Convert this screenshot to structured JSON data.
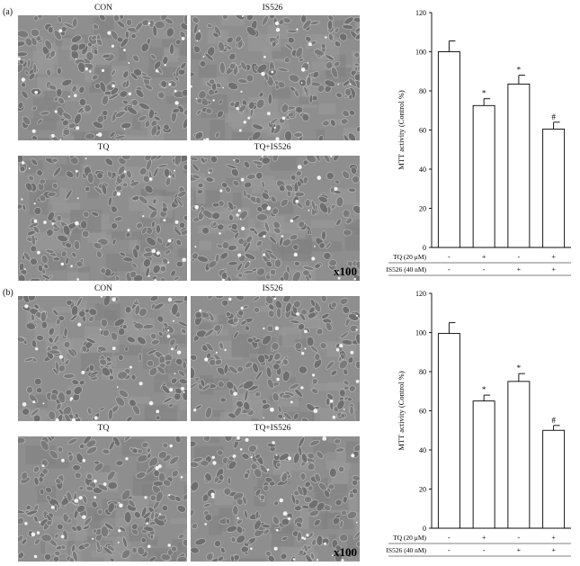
{
  "panels": [
    {
      "label": "(a)",
      "images": [
        "CON",
        "IS526",
        "TQ",
        "TQ+IS526"
      ],
      "magnification": "x100"
    },
    {
      "label": "(b)",
      "images": [
        "CON",
        "IS526",
        "TQ",
        "TQ+IS526"
      ],
      "magnification": "x100"
    }
  ],
  "chart_data": [
    {
      "type": "bar",
      "panel": "(a)",
      "ylabel": "MTT activity (Control %)",
      "ylim": [
        0,
        120
      ],
      "yticks": [
        "0",
        "20",
        "40",
        "60",
        "80",
        "100",
        "120"
      ],
      "values": [
        100,
        72.5,
        83.5,
        60.5
      ],
      "errors": [
        5.5,
        3.5,
        4.5,
        3.5
      ],
      "annotations": [
        "",
        "*",
        "*",
        "#"
      ],
      "rows": [
        {
          "label": "TQ (20 μM)",
          "signs": [
            "-",
            "+",
            "-",
            "+"
          ]
        },
        {
          "label": "IS526 (40 nM)",
          "signs": [
            "-",
            "-",
            "+",
            "+"
          ]
        }
      ],
      "bar_color": "#ffffff",
      "grid": false
    },
    {
      "type": "bar",
      "panel": "(b)",
      "ylabel": "MTT activity (Control %)",
      "ylim": [
        0,
        120
      ],
      "yticks": [
        "0",
        "20",
        "40",
        "60",
        "80",
        "100",
        "120"
      ],
      "values": [
        99.5,
        65,
        75,
        50
      ],
      "errors": [
        5.5,
        3,
        4,
        2.5
      ],
      "annotations": [
        "",
        "*",
        "*",
        "#"
      ],
      "rows": [
        {
          "label": "TQ (20 μM)",
          "signs": [
            "-",
            "+",
            "-",
            "+"
          ]
        },
        {
          "label": "IS526 (40 nM)",
          "signs": [
            "-",
            "-",
            "+",
            "+"
          ]
        }
      ],
      "bar_color": "#ffffff",
      "grid": false
    }
  ]
}
